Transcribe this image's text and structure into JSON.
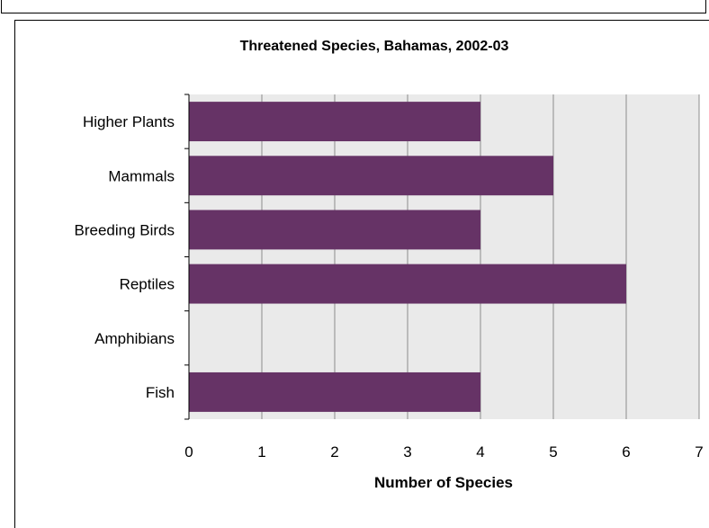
{
  "chart_data": {
    "type": "bar",
    "orientation": "horizontal",
    "title": "Threatened Species, Bahamas, 2002-03",
    "xlabel": "Number of Species",
    "ylabel": "",
    "categories": [
      "Higher Plants",
      "Mammals",
      "Breeding Birds",
      "Reptiles",
      "Amphibians",
      "Fish"
    ],
    "values": [
      4,
      5,
      4,
      6,
      0,
      4
    ],
    "xlim": [
      0,
      7
    ],
    "xticks": [
      "0",
      "1",
      "2",
      "3",
      "4",
      "5",
      "6",
      "7"
    ],
    "grid": true,
    "legend": "none",
    "bar_color": "#663366",
    "plot_background": "#eaeaea"
  }
}
